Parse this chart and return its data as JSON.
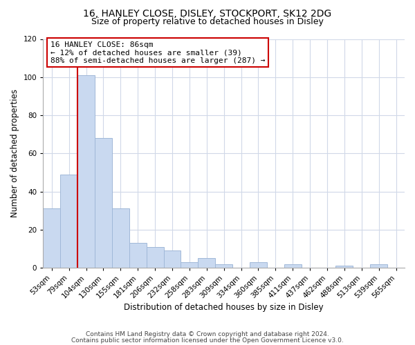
{
  "title": "16, HANLEY CLOSE, DISLEY, STOCKPORT, SK12 2DG",
  "subtitle": "Size of property relative to detached houses in Disley",
  "xlabel": "Distribution of detached houses by size in Disley",
  "ylabel": "Number of detached properties",
  "categories": [
    "53sqm",
    "79sqm",
    "104sqm",
    "130sqm",
    "155sqm",
    "181sqm",
    "206sqm",
    "232sqm",
    "258sqm",
    "283sqm",
    "309sqm",
    "334sqm",
    "360sqm",
    "385sqm",
    "411sqm",
    "437sqm",
    "462sqm",
    "488sqm",
    "513sqm",
    "539sqm",
    "565sqm"
  ],
  "values": [
    31,
    49,
    101,
    68,
    31,
    13,
    11,
    9,
    3,
    5,
    2,
    0,
    3,
    0,
    2,
    0,
    0,
    1,
    0,
    2,
    0
  ],
  "bar_color": "#c9d9f0",
  "bar_edge_color": "#a0b8d8",
  "vline_color": "#cc0000",
  "vline_x": 1.5,
  "annotation_text": "16 HANLEY CLOSE: 86sqm\n← 12% of detached houses are smaller (39)\n88% of semi-detached houses are larger (287) →",
  "annotation_box_color": "#ffffff",
  "annotation_box_edge_color": "#cc0000",
  "ylim": [
    0,
    120
  ],
  "yticks": [
    0,
    20,
    40,
    60,
    80,
    100,
    120
  ],
  "footer_line1": "Contains HM Land Registry data © Crown copyright and database right 2024.",
  "footer_line2": "Contains public sector information licensed under the Open Government Licence v3.0.",
  "title_fontsize": 10,
  "subtitle_fontsize": 9,
  "axis_label_fontsize": 8.5,
  "tick_fontsize": 7.5,
  "annotation_fontsize": 8,
  "footer_fontsize": 6.5,
  "background_color": "#ffffff",
  "grid_color": "#d0d8e8",
  "spine_color": "#aaaaaa"
}
